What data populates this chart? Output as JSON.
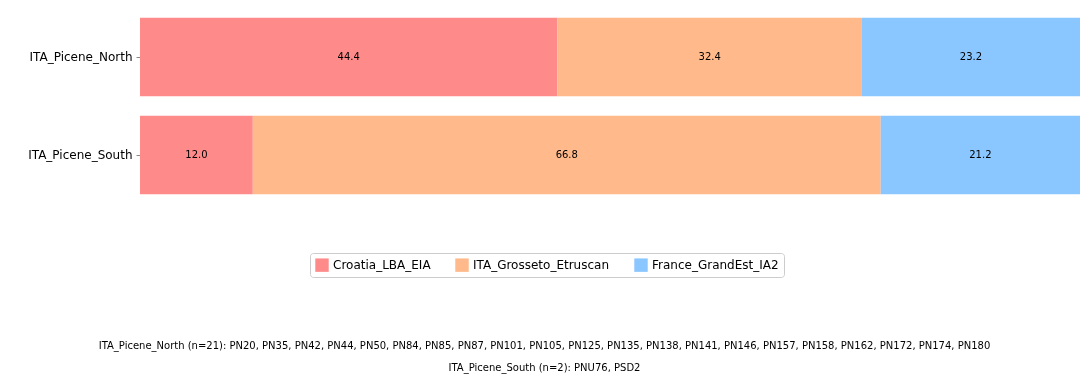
{
  "chart_data": {
    "type": "bar",
    "orientation": "horizontal",
    "stacked": true,
    "tick_labels": "y",
    "legend": "bottom",
    "categories": [
      "ITA_Picene_North",
      "ITA_Picene_South"
    ],
    "xlim": [
      0,
      100
    ],
    "series": [
      {
        "name": "Croatia_LBA_EIA",
        "color": "#ff8a8a",
        "values": [
          44.4,
          12.0
        ],
        "value_labels": [
          "44.4",
          "12.0"
        ]
      },
      {
        "name": "ITA_Grosseto_Etruscan",
        "color": "#ffb98a",
        "values": [
          32.4,
          66.8
        ],
        "value_labels": [
          "32.4",
          "66.8"
        ]
      },
      {
        "name": "France_GrandEst_IA2",
        "color": "#8ac6ff",
        "values": [
          23.2,
          21.2
        ],
        "value_labels": [
          "23.2",
          "21.2"
        ]
      }
    ],
    "annotations": [
      "ITA_Picene_North (n=21): PN20, PN35, PN42, PN44, PN50, PN84, PN85, PN87, PN101, PN105, PN125, PN135, PN138, PN141, PN146, PN157, PN158, PN162, PN172, PN174, PN180",
      "ITA_Picene_South (n=2): PNU76, PSD2"
    ]
  }
}
